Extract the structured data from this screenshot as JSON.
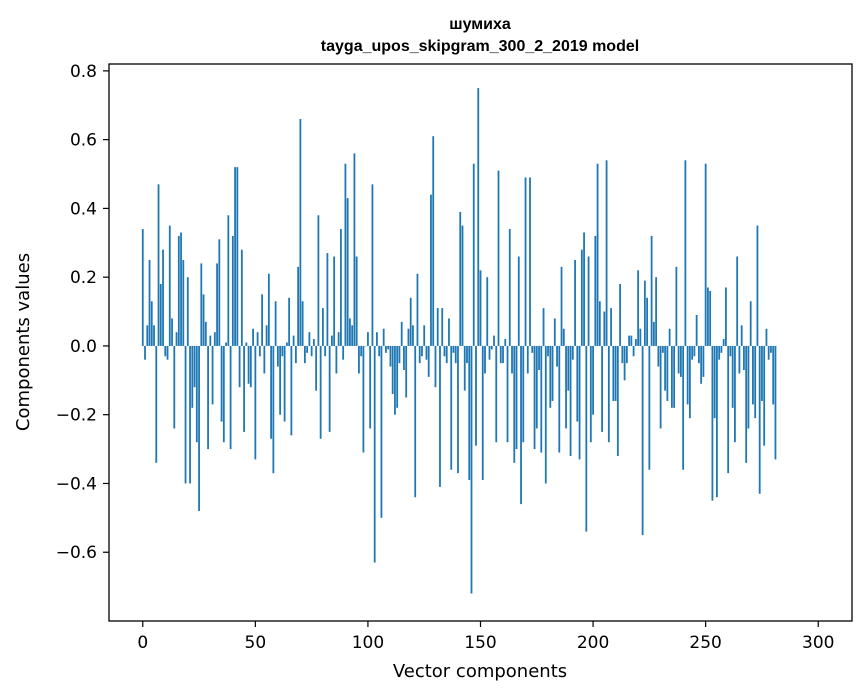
{
  "chart_data": {
    "type": "bar",
    "title": "шумиха",
    "subtitle": "tayga_upos_skipgram_300_2_2019 model",
    "xlabel": "Vector components",
    "ylabel": "Components values",
    "xlim": [
      -15,
      315
    ],
    "ylim": [
      -0.8,
      0.82
    ],
    "xticks": [
      0,
      50,
      100,
      150,
      200,
      250,
      300
    ],
    "xtick_labels": [
      "0",
      "50",
      "100",
      "150",
      "200",
      "250",
      "300"
    ],
    "yticks": [
      -0.6,
      -0.4,
      -0.2,
      0.0,
      0.2,
      0.4,
      0.6,
      0.8
    ],
    "ytick_labels": [
      "−0.6",
      "−0.4",
      "−0.2",
      "0.0",
      "0.2",
      "0.4",
      "0.6",
      "0.8"
    ],
    "bar_color": "#1f77b4",
    "grid": false,
    "legend": "none",
    "values": [
      0.34,
      -0.04,
      0.06,
      0.25,
      0.13,
      0.06,
      -0.34,
      0.47,
      0.18,
      0.28,
      -0.03,
      -0.04,
      0.35,
      0.08,
      -0.24,
      0.04,
      0.32,
      0.33,
      0.25,
      -0.4,
      0.2,
      -0.4,
      -0.18,
      -0.12,
      -0.28,
      -0.48,
      0.24,
      0.15,
      0.07,
      -0.3,
      0.03,
      -0.17,
      0.04,
      0.24,
      0.31,
      -0.22,
      -0.28,
      0.01,
      0.38,
      -0.3,
      0.32,
      0.52,
      0.52,
      -0.12,
      0.28,
      -0.25,
      0.01,
      -0.11,
      -0.12,
      0.05,
      -0.33,
      0.04,
      -0.03,
      0.15,
      -0.08,
      0.06,
      0.21,
      -0.27,
      -0.37,
      0.13,
      -0.06,
      -0.2,
      -0.03,
      -0.22,
      0.01,
      0.14,
      -0.26,
      0.03,
      -0.05,
      0.23,
      0.66,
      0.13,
      -0.05,
      -0.02,
      0.04,
      -0.03,
      0.02,
      -0.13,
      0.38,
      -0.27,
      0.11,
      -0.03,
      0.27,
      -0.25,
      0.03,
      0.26,
      -0.08,
      0.04,
      0.34,
      -0.04,
      0.53,
      0.43,
      0.08,
      0.06,
      0.56,
      0.26,
      -0.08,
      -0.03,
      -0.31,
      0.0,
      0.04,
      -0.24,
      0.47,
      -0.63,
      0.04,
      -0.03,
      -0.5,
      0.05,
      -0.02,
      -0.01,
      -0.06,
      -0.14,
      -0.2,
      -0.18,
      -0.05,
      0.07,
      -0.07,
      -0.15,
      0.05,
      0.14,
      0.06,
      -0.44,
      0.21,
      -0.05,
      -0.03,
      0.06,
      -0.04,
      -0.09,
      0.44,
      0.61,
      -0.12,
      0.11,
      -0.41,
      0.11,
      -0.03,
      -0.05,
      0.08,
      -0.36,
      -0.02,
      -0.05,
      -0.37,
      0.39,
      0.35,
      -0.13,
      -0.05,
      -0.39,
      -0.72,
      0.53,
      -0.29,
      0.75,
      0.22,
      -0.39,
      -0.08,
      0.2,
      -0.04,
      -0.01,
      0.03,
      -0.28,
      0.51,
      -0.05,
      -0.05,
      0.02,
      -0.28,
      0.34,
      -0.08,
      -0.34,
      -0.3,
      0.26,
      -0.46,
      -0.28,
      0.49,
      -0.08,
      0.49,
      -0.02,
      -0.3,
      -0.24,
      -0.07,
      -0.31,
      0.11,
      -0.4,
      -0.03,
      -0.18,
      -0.16,
      0.08,
      -0.06,
      -0.31,
      0.23,
      0.05,
      -0.24,
      -0.13,
      -0.32,
      -0.04,
      0.25,
      -0.22,
      -0.33,
      0.28,
      0.33,
      -0.54,
      0.26,
      -0.28,
      -0.2,
      0.32,
      0.53,
      0.13,
      -0.25,
      0.1,
      0.54,
      -0.28,
      0.11,
      -0.16,
      -0.16,
      -0.32,
      0.18,
      -0.05,
      -0.1,
      -0.05,
      0.03,
      0.03,
      -0.03,
      0.02,
      0.22,
      0.05,
      -0.55,
      0.19,
      0.14,
      -0.36,
      0.32,
      0.07,
      0.2,
      -0.06,
      -0.24,
      -0.02,
      -0.13,
      -0.16,
      0.05,
      -0.18,
      -0.18,
      0.23,
      -0.08,
      -0.09,
      -0.36,
      0.54,
      -0.17,
      -0.21,
      -0.04,
      -0.03,
      0.09,
      -0.05,
      -0.11,
      -0.09,
      0.53,
      0.17,
      0.16,
      -0.45,
      -0.21,
      -0.44,
      -0.04,
      -0.02,
      0.02,
      0.17,
      -0.37,
      -0.03,
      -0.18,
      -0.28,
      0.26,
      -0.08,
      0.06,
      -0.07,
      -0.34,
      -0.24,
      0.13,
      -0.17,
      -0.21,
      0.35,
      -0.43,
      -0.16,
      -0.29,
      0.05,
      -0.04,
      -0.02,
      -0.17,
      -0.33
    ],
    "values_tail_note_unused": null
  }
}
